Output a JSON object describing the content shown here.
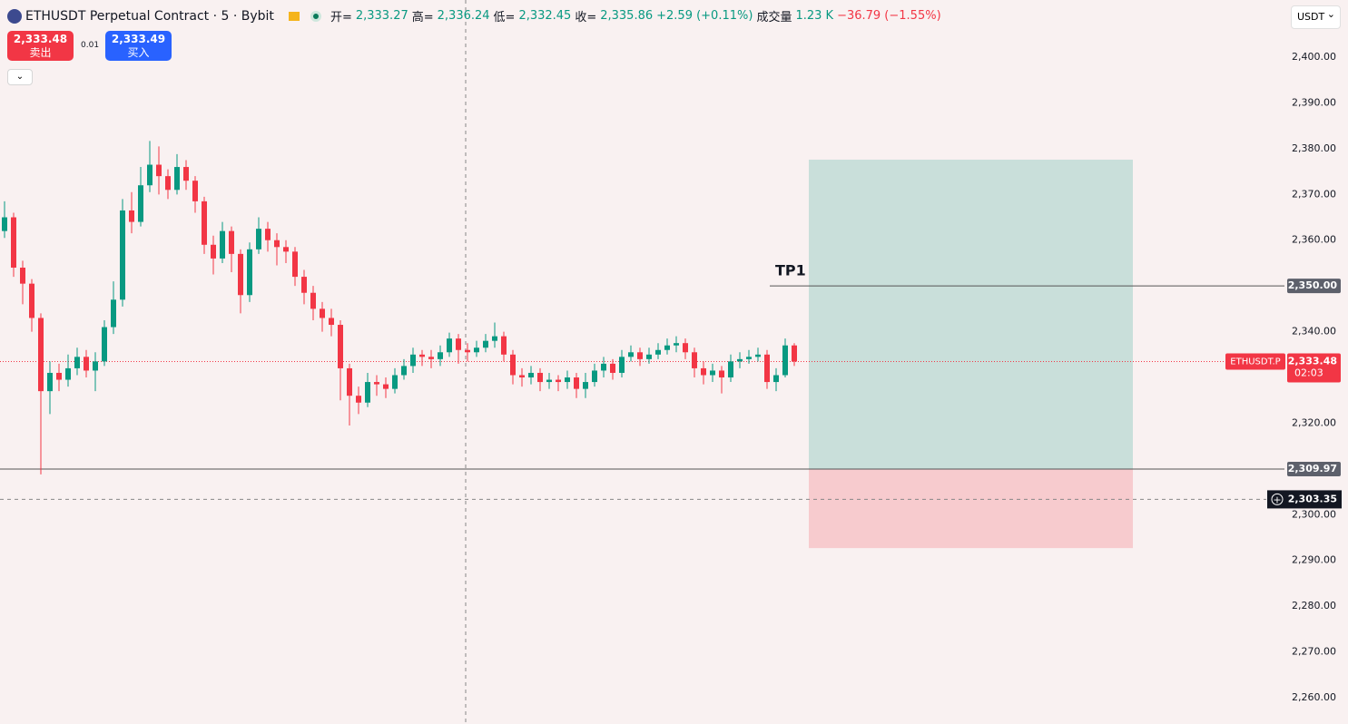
{
  "header": {
    "symbol": "ETHUSDT Perpetual Contract · 5 · Bybit",
    "ohlc": [
      {
        "label": "开=",
        "value": "2,333.27"
      },
      {
        "label": "高=",
        "value": "2,336.24"
      },
      {
        "label": "低=",
        "value": "2,332.45"
      },
      {
        "label": "收=",
        "value": "2,335.86"
      }
    ],
    "change": "+2.59 (+0.11%)",
    "volume_label": "成交量",
    "volume": "1.23 K",
    "volume_change": "−36.79 (−1.55%)",
    "currency": "USDT"
  },
  "trade": {
    "sell_price": "2,333.48",
    "sell_label": "卖出",
    "spread": "0.01",
    "buy_price": "2,333.49",
    "buy_label": "买入"
  },
  "chart_data": {
    "type": "candlestick",
    "up_color": "#089981",
    "down_color": "#f23645",
    "ylim": [
      2254.25,
      2412.5
    ],
    "yticks": [
      {
        "value": 2400,
        "label": "2,400.00"
      },
      {
        "value": 2390,
        "label": "2,390.00"
      },
      {
        "value": 2380,
        "label": "2,380.00"
      },
      {
        "value": 2370,
        "label": "2,370.00"
      },
      {
        "value": 2360,
        "label": "2,360.00"
      },
      {
        "value": 2340,
        "label": "2,340.00"
      },
      {
        "value": 2320,
        "label": "2,320.00"
      },
      {
        "value": 2300,
        "label": "2,300.00"
      },
      {
        "value": 2290,
        "label": "2,290.00"
      },
      {
        "value": 2280,
        "label": "2,280.00"
      },
      {
        "value": 2270,
        "label": "2,270.00"
      },
      {
        "value": 2260,
        "label": "2,260.00"
      }
    ],
    "open": [
      2362.0,
      2365.0,
      2354.0,
      2350.5,
      2343.0,
      2327.0,
      2331.0,
      2329.5,
      2332.0,
      2334.5,
      2331.5,
      2333.5,
      2341.0,
      2347.0,
      2366.5,
      2364.0,
      2372.0,
      2376.5,
      2374.0,
      2371.0,
      2376.0,
      2373.0,
      2368.5,
      2359.0,
      2356.0,
      2362.0,
      2357.0,
      2348.0,
      2358.0,
      2362.5,
      2360.0,
      2358.5,
      2357.5,
      2352.0,
      2348.5,
      2345.0,
      2343.0,
      2341.5,
      2332.0,
      2326.0,
      2324.5,
      2329.0,
      2328.5,
      2327.5,
      2330.5,
      2332.5,
      2335.0,
      2334.5,
      2334.0,
      2335.5,
      2338.5,
      2336.0,
      2335.5,
      2336.5,
      2338.0,
      2339.0,
      2335.0,
      2330.5,
      2330.0,
      2331.0,
      2329.0,
      2329.5,
      2329.0,
      2330.0,
      2327.5,
      2329.0,
      2331.5,
      2333.0,
      2331.0,
      2334.5,
      2335.5,
      2334.0,
      2335.0,
      2336.0,
      2337.0,
      2337.5,
      2335.5,
      2332.0,
      2330.5,
      2331.5,
      2330.0,
      2333.5,
      2334.0,
      2334.5,
      2335.0,
      2329.0,
      2330.5,
      2337.0
    ],
    "high": [
      2368.5,
      2366.0,
      2355.5,
      2351.5,
      2344.0,
      2333.5,
      2333.0,
      2335.0,
      2336.5,
      2336.0,
      2335.5,
      2342.5,
      2351.0,
      2369.0,
      2370.5,
      2376.0,
      2381.7,
      2380.5,
      2375.5,
      2378.8,
      2377.5,
      2374.0,
      2369.5,
      2361.0,
      2364.0,
      2363.0,
      2358.0,
      2359.5,
      2365.0,
      2364.0,
      2361.5,
      2360.0,
      2358.5,
      2353.5,
      2350.0,
      2346.5,
      2345.0,
      2342.5,
      2333.0,
      2328.0,
      2331.0,
      2330.5,
      2330.0,
      2332.0,
      2334.0,
      2336.5,
      2336.0,
      2336.0,
      2337.0,
      2339.8,
      2339.5,
      2337.5,
      2338.0,
      2339.5,
      2342.0,
      2340.0,
      2336.0,
      2332.0,
      2332.5,
      2332.0,
      2331.0,
      2330.5,
      2331.5,
      2331.0,
      2331.0,
      2333.0,
      2334.5,
      2334.0,
      2336.0,
      2337.0,
      2336.5,
      2336.5,
      2337.5,
      2338.5,
      2339.0,
      2338.5,
      2336.5,
      2333.5,
      2333.0,
      2332.5,
      2335.0,
      2335.5,
      2336.0,
      2336.5,
      2336.0,
      2332.0,
      2338.5,
      2337.5
    ],
    "low": [
      2360.5,
      2352.0,
      2346.0,
      2340.0,
      2308.8,
      2322.0,
      2327.0,
      2328.0,
      2330.5,
      2330.0,
      2327.0,
      2332.5,
      2339.5,
      2345.5,
      2361.5,
      2363.0,
      2370.5,
      2370.0,
      2369.0,
      2370.0,
      2371.0,
      2366.0,
      2357.0,
      2352.5,
      2355.0,
      2353.0,
      2344.0,
      2346.5,
      2357.0,
      2357.5,
      2354.5,
      2355.0,
      2350.0,
      2346.0,
      2342.5,
      2340.0,
      2339.0,
      2325.0,
      2319.5,
      2322.0,
      2323.5,
      2326.0,
      2325.5,
      2326.5,
      2329.5,
      2331.0,
      2332.5,
      2332.0,
      2332.5,
      2334.5,
      2333.0,
      2333.5,
      2334.5,
      2335.5,
      2336.5,
      2333.5,
      2328.5,
      2328.0,
      2328.5,
      2327.0,
      2327.5,
      2327.0,
      2327.5,
      2325.5,
      2325.5,
      2328.0,
      2330.0,
      2329.5,
      2330.0,
      2333.5,
      2332.5,
      2333.0,
      2334.0,
      2335.0,
      2335.5,
      2334.0,
      2330.0,
      2328.5,
      2329.0,
      2326.5,
      2329.0,
      2332.0,
      2333.0,
      2333.5,
      2327.5,
      2327.0,
      2330.0,
      2332.5
    ],
    "close": [
      2365.0,
      2354.0,
      2350.5,
      2343.0,
      2327.0,
      2331.0,
      2329.5,
      2332.0,
      2334.5,
      2331.5,
      2333.5,
      2341.0,
      2347.0,
      2366.5,
      2364.0,
      2372.0,
      2376.5,
      2374.0,
      2371.0,
      2376.0,
      2373.0,
      2368.5,
      2359.0,
      2356.0,
      2362.0,
      2357.0,
      2348.0,
      2358.0,
      2362.5,
      2360.0,
      2358.5,
      2357.5,
      2352.0,
      2348.5,
      2345.0,
      2343.0,
      2341.5,
      2332.0,
      2326.0,
      2324.5,
      2329.0,
      2328.5,
      2327.5,
      2330.5,
      2332.5,
      2335.0,
      2334.5,
      2334.0,
      2335.5,
      2338.5,
      2336.0,
      2335.5,
      2336.5,
      2338.0,
      2339.0,
      2335.0,
      2330.5,
      2330.0,
      2331.0,
      2329.0,
      2329.5,
      2329.0,
      2330.0,
      2327.5,
      2329.0,
      2331.5,
      2333.0,
      2331.0,
      2334.5,
      2335.5,
      2334.0,
      2335.0,
      2336.0,
      2337.0,
      2337.5,
      2335.5,
      2332.0,
      2330.5,
      2331.5,
      2330.0,
      2333.5,
      2334.0,
      2334.5,
      2335.0,
      2329.0,
      2330.5,
      2337.0,
      2333.48
    ],
    "tp_line": {
      "name": "TP1",
      "value": 2350,
      "label": "2,350.00"
    },
    "entry_line": {
      "value": 2309.97,
      "label": "2,309.97"
    },
    "crosshair": {
      "value": 2303.35,
      "label": "2,303.35"
    },
    "last_price": {
      "value": 2333.48,
      "label": "2,333.48",
      "symbol": "ETHUSDT.P",
      "countdown": "02:03"
    },
    "position": {
      "target": 2377.6,
      "entry": 2309.97,
      "stop": 2292.7
    }
  }
}
